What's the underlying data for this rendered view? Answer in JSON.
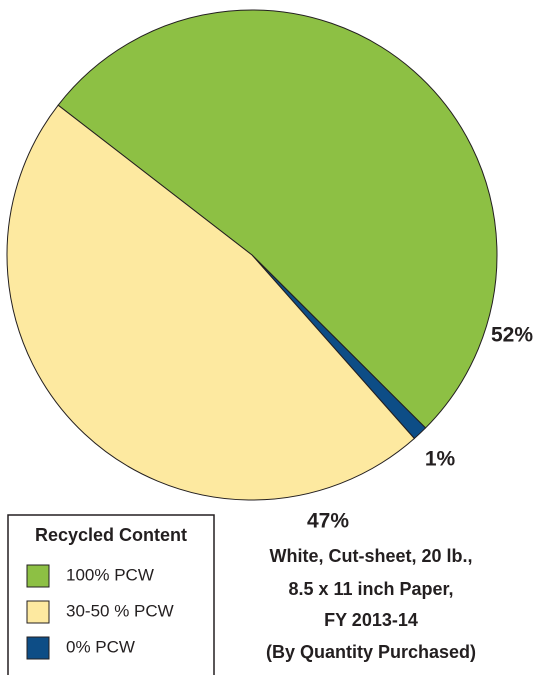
{
  "chart_data": {
    "type": "pie",
    "title": [
      "White, Cut-sheet, 20 lb.,",
      "8.5 x 11 inch Paper,",
      "FY 2013-14",
      "(By Quantity Purchased)"
    ],
    "legend_title": "Recycled Content",
    "categories": [
      "100% PCW",
      "0% PCW",
      "30-50 % PCW"
    ],
    "values": [
      52,
      1,
      47
    ],
    "value_labels": [
      "52%",
      "1%",
      "47%"
    ],
    "colors": [
      "#8dc044",
      "#0d4d86",
      "#fde9a0"
    ],
    "legend_order": [
      0,
      2,
      1
    ]
  }
}
